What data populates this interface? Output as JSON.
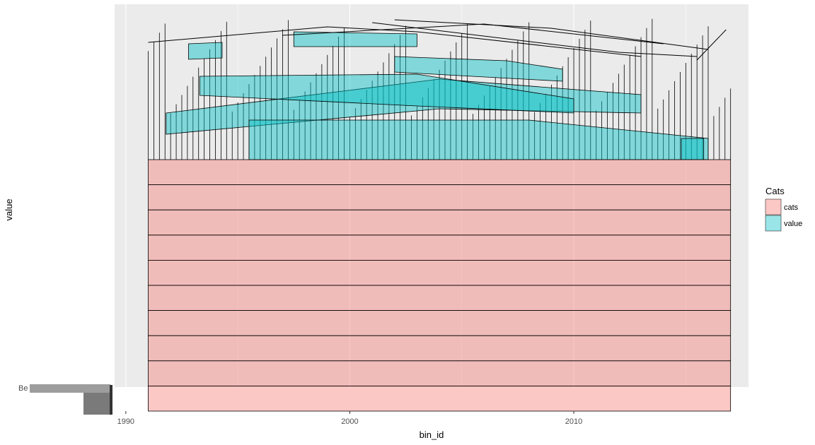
{
  "chart_data": {
    "type": "area",
    "title": "",
    "xlabel": "bin_id",
    "ylabel": "value",
    "xlim": [
      1989.5,
      2017.8
    ],
    "x_ticks": [
      1990,
      2000,
      2010
    ],
    "x_range": [
      1991,
      2017
    ],
    "grid": true,
    "legend": {
      "title": "Cats",
      "position": "right",
      "entries": [
        {
          "label": "cats",
          "color": "#F8766D"
        },
        {
          "label": "value",
          "color": "#00BFC4"
        }
      ]
    },
    "series": [
      {
        "name": "cats",
        "color": "#F8766D",
        "bands": 10
      },
      {
        "name": "value",
        "color": "#00BFC4"
      }
    ],
    "y_tick_text": "Be"
  }
}
